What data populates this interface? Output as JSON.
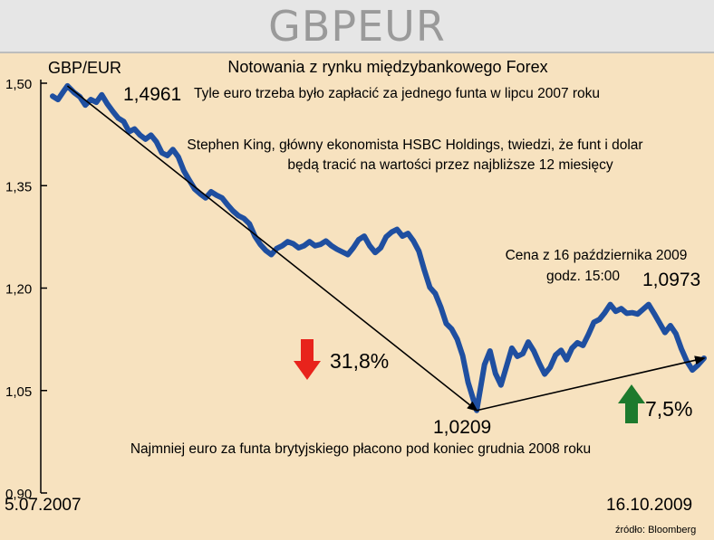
{
  "header": {
    "title": "GBPEUR"
  },
  "chart_data": {
    "type": "line",
    "title": "Notowania z rynku międzybankowego Forex",
    "series": [
      {
        "name": "GBP/EUR",
        "color": "#1f4fa0",
        "points": [
          [
            "2007-07-05",
            1.481
          ],
          [
            "2007-07-12",
            1.476
          ],
          [
            "2007-07-19",
            1.488
          ],
          [
            "2007-07-24",
            1.4961
          ],
          [
            "2007-08-02",
            1.486
          ],
          [
            "2007-08-09",
            1.48
          ],
          [
            "2007-08-16",
            1.468
          ],
          [
            "2007-08-23",
            1.476
          ],
          [
            "2007-08-30",
            1.472
          ],
          [
            "2007-09-06",
            1.483
          ],
          [
            "2007-09-13",
            1.47
          ],
          [
            "2007-09-20",
            1.459
          ],
          [
            "2007-09-27",
            1.449
          ],
          [
            "2007-10-04",
            1.444
          ],
          [
            "2007-10-11",
            1.429
          ],
          [
            "2007-10-18",
            1.433
          ],
          [
            "2007-10-25",
            1.424
          ],
          [
            "2007-11-01",
            1.418
          ],
          [
            "2007-11-08",
            1.424
          ],
          [
            "2007-11-15",
            1.414
          ],
          [
            "2007-11-22",
            1.398
          ],
          [
            "2007-11-29",
            1.394
          ],
          [
            "2007-12-06",
            1.403
          ],
          [
            "2007-12-13",
            1.392
          ],
          [
            "2007-12-20",
            1.372
          ],
          [
            "2007-12-27",
            1.358
          ],
          [
            "2008-01-03",
            1.345
          ],
          [
            "2008-01-10",
            1.338
          ],
          [
            "2008-01-17",
            1.332
          ],
          [
            "2008-01-24",
            1.341
          ],
          [
            "2008-01-31",
            1.336
          ],
          [
            "2008-02-07",
            1.332
          ],
          [
            "2008-02-14",
            1.322
          ],
          [
            "2008-02-21",
            1.313
          ],
          [
            "2008-02-28",
            1.306
          ],
          [
            "2008-03-06",
            1.302
          ],
          [
            "2008-03-13",
            1.294
          ],
          [
            "2008-03-20",
            1.276
          ],
          [
            "2008-03-27",
            1.264
          ],
          [
            "2008-04-03",
            1.255
          ],
          [
            "2008-04-10",
            1.249
          ],
          [
            "2008-04-17",
            1.258
          ],
          [
            "2008-04-24",
            1.262
          ],
          [
            "2008-05-01",
            1.268
          ],
          [
            "2008-05-08",
            1.265
          ],
          [
            "2008-05-15",
            1.259
          ],
          [
            "2008-05-22",
            1.262
          ],
          [
            "2008-05-29",
            1.268
          ],
          [
            "2008-06-05",
            1.262
          ],
          [
            "2008-06-12",
            1.264
          ],
          [
            "2008-06-19",
            1.269
          ],
          [
            "2008-06-26",
            1.262
          ],
          [
            "2008-07-03",
            1.257
          ],
          [
            "2008-07-10",
            1.253
          ],
          [
            "2008-07-17",
            1.249
          ],
          [
            "2008-07-24",
            1.259
          ],
          [
            "2008-07-31",
            1.271
          ],
          [
            "2008-08-07",
            1.276
          ],
          [
            "2008-08-14",
            1.262
          ],
          [
            "2008-08-21",
            1.252
          ],
          [
            "2008-08-28",
            1.259
          ],
          [
            "2008-09-04",
            1.275
          ],
          [
            "2008-09-11",
            1.282
          ],
          [
            "2008-09-18",
            1.286
          ],
          [
            "2008-09-25",
            1.276
          ],
          [
            "2008-10-02",
            1.28
          ],
          [
            "2008-10-09",
            1.269
          ],
          [
            "2008-10-16",
            1.254
          ],
          [
            "2008-10-23",
            1.226
          ],
          [
            "2008-10-30",
            1.201
          ],
          [
            "2008-11-06",
            1.192
          ],
          [
            "2008-11-13",
            1.172
          ],
          [
            "2008-11-20",
            1.148
          ],
          [
            "2008-11-27",
            1.14
          ],
          [
            "2008-12-04",
            1.125
          ],
          [
            "2008-12-11",
            1.101
          ],
          [
            "2008-12-18",
            1.062
          ],
          [
            "2008-12-29",
            1.0209
          ],
          [
            "2009-01-08",
            1.088
          ],
          [
            "2009-01-15",
            1.108
          ],
          [
            "2009-01-22",
            1.075
          ],
          [
            "2009-01-29",
            1.058
          ],
          [
            "2009-02-05",
            1.085
          ],
          [
            "2009-02-12",
            1.112
          ],
          [
            "2009-02-19",
            1.1
          ],
          [
            "2009-02-26",
            1.104
          ],
          [
            "2009-03-05",
            1.121
          ],
          [
            "2009-03-12",
            1.108
          ],
          [
            "2009-03-19",
            1.09
          ],
          [
            "2009-03-26",
            1.074
          ],
          [
            "2009-04-02",
            1.084
          ],
          [
            "2009-04-09",
            1.102
          ],
          [
            "2009-04-16",
            1.109
          ],
          [
            "2009-04-23",
            1.095
          ],
          [
            "2009-04-30",
            1.112
          ],
          [
            "2009-05-07",
            1.12
          ],
          [
            "2009-05-14",
            1.116
          ],
          [
            "2009-05-21",
            1.132
          ],
          [
            "2009-05-28",
            1.15
          ],
          [
            "2009-06-04",
            1.154
          ],
          [
            "2009-06-11",
            1.164
          ],
          [
            "2009-06-18",
            1.176
          ],
          [
            "2009-06-25",
            1.166
          ],
          [
            "2009-07-02",
            1.17
          ],
          [
            "2009-07-09",
            1.163
          ],
          [
            "2009-07-16",
            1.164
          ],
          [
            "2009-07-23",
            1.162
          ],
          [
            "2009-07-30",
            1.169
          ],
          [
            "2009-08-06",
            1.176
          ],
          [
            "2009-08-13",
            1.163
          ],
          [
            "2009-08-20",
            1.149
          ],
          [
            "2009-08-27",
            1.135
          ],
          [
            "2009-09-03",
            1.145
          ],
          [
            "2009-09-10",
            1.133
          ],
          [
            "2009-09-17",
            1.111
          ],
          [
            "2009-09-24",
            1.093
          ],
          [
            "2009-10-01",
            1.08
          ],
          [
            "2009-10-08",
            1.087
          ],
          [
            "2009-10-16",
            1.0973
          ]
        ]
      }
    ],
    "ylim": [
      0.9,
      1.5
    ],
    "yticks": [
      0.9,
      1.05,
      1.2,
      1.35,
      1.5
    ],
    "ytick_labels": [
      "0,90",
      "1,05",
      "1,20",
      "1,35",
      "1,50"
    ],
    "xlim": [
      "2007-07-05",
      "2009-10-16"
    ],
    "x_start_label": "5.07.2007",
    "x_end_label": "16.10.2009",
    "grid": false,
    "trend_arrows": [
      {
        "from": [
          "2007-07-24",
          1.4961
        ],
        "to": [
          "2008-12-29",
          1.0209
        ]
      },
      {
        "from": [
          "2008-12-29",
          1.0209
        ],
        "to": [
          "2009-10-16",
          1.0973
        ]
      }
    ],
    "annotations": {
      "series_label": "GBP/EUR",
      "high_value": "1,4961",
      "high_note": "Tyle euro trzeba było zapłacić za jednego funta w lipcu 2007 roku",
      "forecast_line1": "Stephen King, główny ekonomista HSBC Holdings, twiedzi, że funt i dolar",
      "forecast_line2": "będą tracić na wartości przez najbliższe 12 miesięcy",
      "current_note_line1": "Cena z 16 października 2009",
      "current_note_line2": "godz. 15:00",
      "current_value": "1,0973",
      "low_value": "1,0209",
      "low_note": "Najmniej euro za funta brytyjskiego płacono pod koniec grudnia 2008 roku",
      "drop_pct": "31,8%",
      "rise_pct": "7,5%",
      "source": "źródło: Bloomberg"
    },
    "colors": {
      "drop_arrow": "#e8231c",
      "rise_arrow": "#1d7a2d",
      "line": "#1f4fa0"
    }
  }
}
